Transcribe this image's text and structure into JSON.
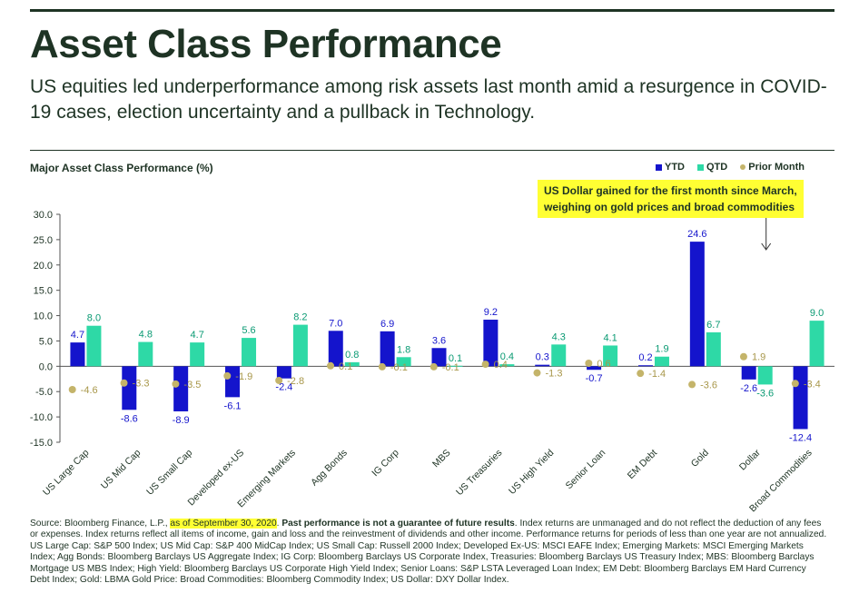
{
  "header": {
    "title": "Asset Class Performance",
    "subtitle": "US equities led underperformance among risk assets last month amid a resurgence in COVID-19 cases, election uncertainty and a pullback in Technology."
  },
  "chart_data": {
    "type": "bar",
    "title": "Major Asset Class Performance (%)",
    "categories": [
      "US Large Cap",
      "US Mid Cap",
      "US Small Cap",
      "Developed ex-US",
      "Emerging Markets",
      "Agg Bonds",
      "IG Corp",
      "MBS",
      "US Treasuries",
      "US High Yield",
      "Senior Loan",
      "EM Debt",
      "Gold",
      "Dollar",
      "Broad Commodities"
    ],
    "series": [
      {
        "name": "YTD",
        "type": "bar",
        "color": "#1414cc",
        "values": [
          4.7,
          -8.6,
          -8.9,
          -6.1,
          -2.4,
          7.0,
          6.9,
          3.6,
          9.2,
          0.3,
          -0.7,
          0.2,
          24.6,
          -2.6,
          -12.4
        ],
        "labels": [
          "4.7",
          "-8.6",
          "-8.9",
          "-6.1",
          "-2.4",
          "7.0",
          "6.9",
          "3.6",
          "9.2",
          "0.3",
          "-0.7",
          "0.2",
          "24.6",
          "-2.6",
          "-12.4"
        ]
      },
      {
        "name": "QTD",
        "type": "bar",
        "color": "#2ed9a6",
        "values": [
          8.0,
          4.8,
          4.7,
          5.6,
          8.2,
          0.8,
          1.8,
          0.1,
          0.4,
          4.3,
          4.1,
          1.9,
          6.7,
          -3.6,
          9.0
        ],
        "labels": [
          "8.0",
          "4.8",
          "4.7",
          "5.6",
          "8.2",
          "0.8",
          "1.8",
          "0.1",
          "0.4",
          "4.3",
          "4.1",
          "1.9",
          "6.7",
          "-3.6",
          "9.0"
        ]
      },
      {
        "name": "Prior Month",
        "type": "dot",
        "color": "#c4b46a",
        "values": [
          -4.6,
          -3.3,
          -3.5,
          -1.9,
          -2.8,
          0.1,
          -0.1,
          -0.1,
          0.4,
          -1.3,
          0.6,
          -1.4,
          -3.6,
          1.9,
          -3.4
        ],
        "labels": [
          "-4.6",
          "-3.3",
          "-3.5",
          "-1.9",
          "-2.8",
          "0.1",
          "-0.1",
          "-0.1",
          "0.4",
          "-1.3",
          "0.6",
          "-1.4",
          "-3.6",
          "1.9",
          "-3.4"
        ]
      }
    ],
    "ylim": [
      -15,
      30
    ],
    "yticks": [
      "30.0",
      "25.0",
      "20.0",
      "15.0",
      "10.0",
      "5.0",
      "0.0",
      "-5.0",
      "-10.0",
      "-15.0"
    ],
    "ytick_values": [
      30,
      25,
      20,
      15,
      10,
      5,
      0,
      -5,
      -10,
      -15
    ],
    "legend_position": "top-right",
    "grid": false,
    "annotation": {
      "text_line1": "US Dollar gained for the first month since March,",
      "text_line2": "weighing on gold prices and broad commodities",
      "target": "Dollar"
    }
  },
  "footnote": {
    "source_prefix": "Source: Bloomberg Finance, L.P.,",
    "highlight": "as of September 30, 2020",
    "bold_text": "Past performance is not a guarantee of future results",
    "rest": ". Index returns are unmanaged and do not reflect the deduction of any fees or expenses. Index returns reflect all items of income, gain and loss and the reinvestment of dividends and other income. Performance returns for periods of less than one year are not annualized. US Large Cap: S&P 500 Index; US Mid Cap: S&P 400 MidCap Index; US Small Cap: Russell 2000 Index; Developed Ex-US: MSCI EAFE Index; Emerging Markets: MSCI Emerging Markets Index; Agg Bonds: Bloomberg Barclays US Aggregate Index; IG Corp: Bloomberg Barclays US Corporate Index, Treasuries: Bloomberg Barclays US Treasury Index; MBS: Bloomberg Barclays Mortgage US MBS Index; High Yield: Bloomberg Barclays US Corporate High Yield Index; Senior Loans: S&P LSTA Leveraged Loan Index; EM Debt: Bloomberg Barclays EM Hard Currency Debt Index; Gold: LBMA Gold Price: Broad Commodities: Bloomberg Commodity Index; US Dollar: DXY Dollar Index."
  }
}
